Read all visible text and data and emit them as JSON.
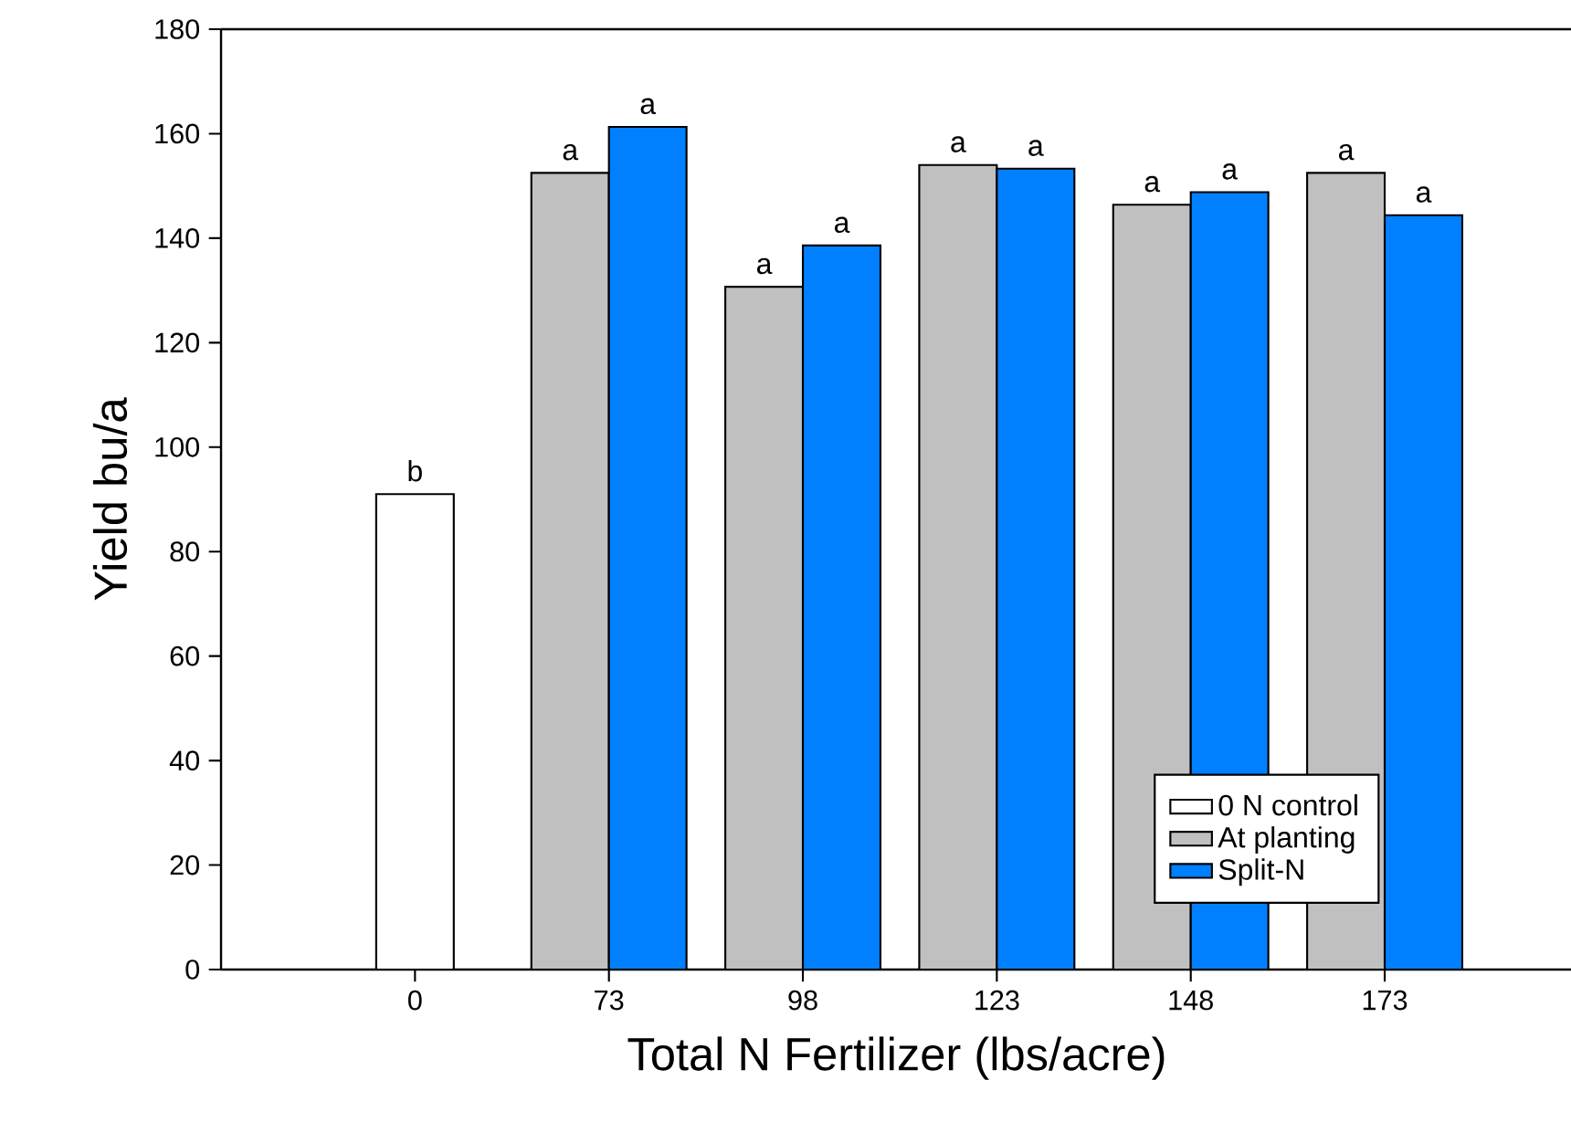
{
  "chart_data": {
    "type": "bar",
    "xlabel": "Total N Fertilizer (lbs/acre)",
    "ylabel": "Yield bu/a",
    "categories": [
      "0",
      "73",
      "98",
      "123",
      "148",
      "173"
    ],
    "series": [
      {
        "name": "0 N control",
        "color": "#ffffff",
        "values": [
          91,
          null,
          null,
          null,
          null,
          null
        ],
        "value_labels": [
          "b",
          null,
          null,
          null,
          null,
          null
        ]
      },
      {
        "name": "At planting",
        "color": "#c0c0c0",
        "values": [
          null,
          152.5,
          130.7,
          154,
          146.4,
          152.5
        ],
        "value_labels": [
          null,
          "a",
          "a",
          "a",
          "a",
          "a"
        ]
      },
      {
        "name": "Split-N",
        "color": "#0080ff",
        "values": [
          null,
          161.3,
          138.6,
          153.3,
          148.8,
          144.4
        ],
        "value_labels": [
          null,
          "a",
          "a",
          "a",
          "a",
          "a"
        ]
      }
    ],
    "ylim": [
      0,
      180
    ],
    "yticks": [
      0,
      20,
      40,
      60,
      80,
      100,
      120,
      140,
      160,
      180
    ],
    "grid": false,
    "legend": "bottom right"
  }
}
